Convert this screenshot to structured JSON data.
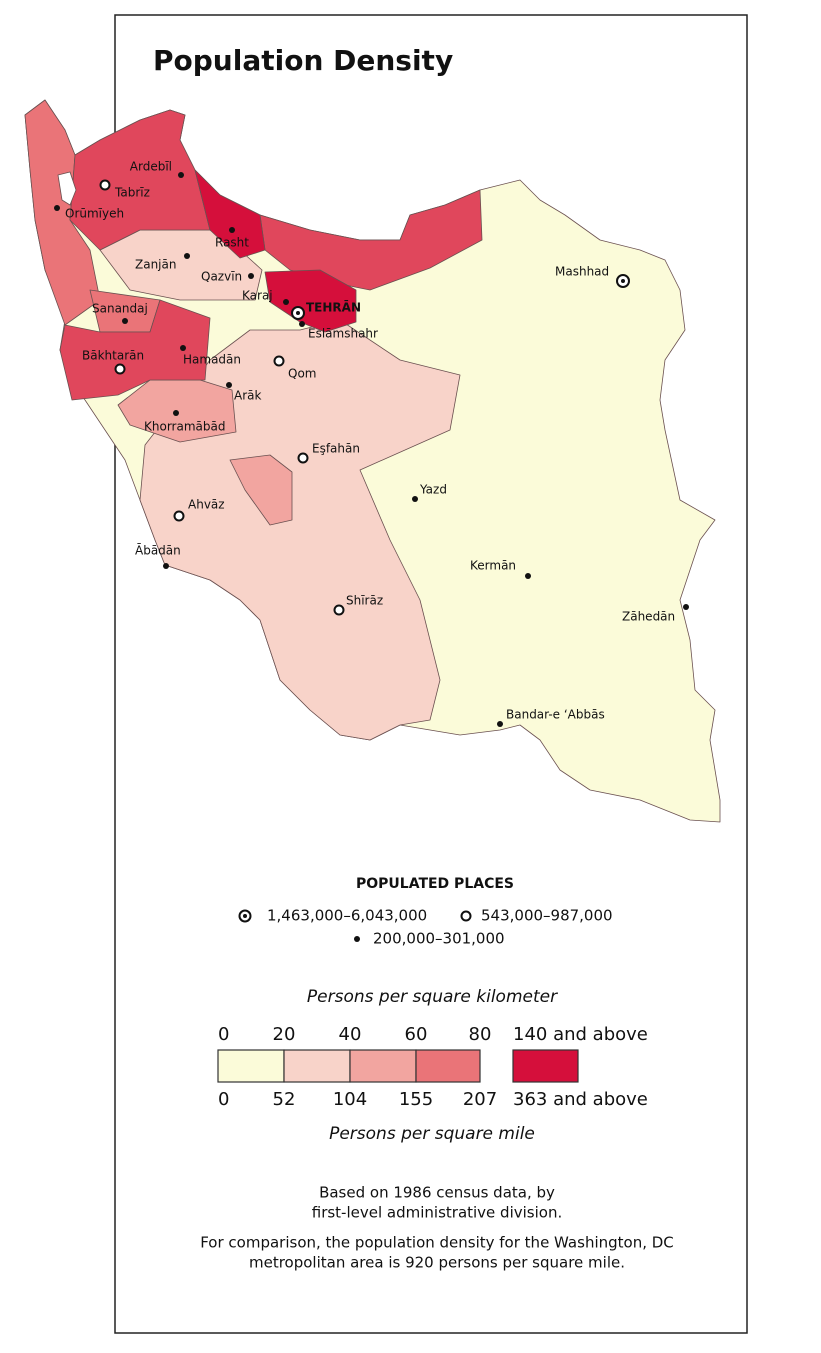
{
  "title": "Population Density",
  "cities": [
    "Ardebīl",
    "Tabrīz",
    "Orūmīyeh",
    "Rasht",
    "Zanjān",
    "Qazvīn",
    "Karaj",
    "TEHRĀN",
    "Eslāmshahr",
    "Sanandaj",
    "Bākhtarān",
    "Hamadān",
    "Qom",
    "Arāk",
    "Khorramābād",
    "Eşfahān",
    "Yazd",
    "Ahvāz",
    "Ābādān",
    "Kermān",
    "Shīrāz",
    "Zāhedān",
    "Mashhad",
    "Bandar-e ʻAbbās"
  ],
  "populated_places": {
    "title": "POPULATED PLACES",
    "classes": [
      "1,463,000–6,043,000",
      "543,000–987,000",
      "200,000–301,000"
    ]
  },
  "legend": {
    "km_title": "Persons per square kilometer",
    "km_labels": [
      0,
      20,
      40,
      60,
      80
    ],
    "km_top": "140 and above",
    "mi_labels": [
      0,
      52,
      104,
      155,
      207
    ],
    "mi_top": "363 and above",
    "mi_title": "Persons per square mile",
    "colors": [
      "#fbfbd9",
      "#f8d3c9",
      "#f2a5a0",
      "#ea7478",
      "#e0475c",
      "#d50f3b"
    ]
  },
  "notes": [
    "Based on 1986 census data, by",
    "first-level administrative division.",
    "For comparison, the population density for the Washington, DC",
    "metropolitan area is 920 persons per square mile."
  ]
}
